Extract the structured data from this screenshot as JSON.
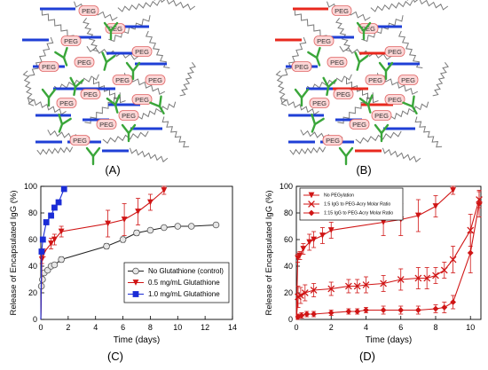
{
  "panels": {
    "A": {
      "caption": "(A)",
      "peg_label": "PEG"
    },
    "B": {
      "caption": "(B)",
      "peg_label": "PEG"
    },
    "C": {
      "caption": "(C)"
    },
    "D": {
      "caption": "(D)"
    }
  },
  "colors": {
    "peg_fill": "#fcd6d6",
    "peg_stroke": "#e06666",
    "crosslink_blue": "#1f3fd6",
    "crosslink_red": "#e8281e",
    "antibody_green": "#3aa63a",
    "chain_gray": "#7a7a7a",
    "gray_series": "#9a9a9a",
    "red_series": "#d01515",
    "blue_series": "#1a2cd6"
  },
  "icons": {
    "antibody": "y-shaped-antibody-icon",
    "polymer_chain": "wavy-chain-icon",
    "crosslinker": "crosslink-bar-icon"
  },
  "chart_data": [
    {
      "panel": "C",
      "type": "line",
      "xlabel": "Time (days)",
      "ylabel": "Release of Encapsulated IgG (%)",
      "xlim": [
        0,
        14
      ],
      "ylim": [
        0,
        100
      ],
      "xticks": [
        0,
        2,
        4,
        6,
        8,
        10,
        12,
        14
      ],
      "yticks": [
        0,
        20,
        40,
        60,
        80,
        100
      ],
      "grid": false,
      "legend_position": "bottom-right",
      "series": [
        {
          "name": "No Glutathione (control)",
          "color": "#9a9a9a",
          "marker": "circle",
          "x": [
            0,
            0.04,
            0.12,
            0.25,
            0.5,
            0.75,
            1,
            1.5,
            4.8,
            6,
            7,
            8,
            9,
            10,
            11,
            12.8
          ],
          "y": [
            0,
            25,
            30,
            35,
            37,
            40,
            41,
            45,
            55,
            60,
            65,
            67,
            69,
            70,
            70,
            71
          ],
          "err": [
            0,
            0,
            0,
            0,
            0,
            0,
            0,
            2,
            2,
            2,
            2,
            1,
            1,
            1,
            1,
            1
          ]
        },
        {
          "name": "0.5 mg/mL Glutathione",
          "color": "#d01515",
          "marker": "triangle-down",
          "x": [
            0,
            0.08,
            0.2,
            0.75,
            1,
            1.5,
            4.9,
            6.1,
            7.1,
            8,
            9
          ],
          "y": [
            0,
            45,
            50,
            57,
            60,
            66,
            72,
            75,
            81,
            88,
            97
          ],
          "err": [
            0,
            3,
            3,
            4,
            4,
            4,
            10,
            12,
            10,
            6,
            3
          ]
        },
        {
          "name": "1.0 mg/mL Glutathione",
          "color": "#1a2cd6",
          "marker": "square",
          "x": [
            0,
            0.06,
            0.15,
            0.4,
            0.75,
            1,
            1.3,
            1.7
          ],
          "y": [
            0,
            51,
            60,
            73,
            78,
            84,
            88,
            98
          ],
          "err": [
            0,
            0,
            0,
            0,
            0,
            0,
            0,
            0
          ]
        }
      ]
    },
    {
      "panel": "D",
      "type": "line",
      "xlabel": "Time (days)",
      "ylabel": "Release of Encapsulated IgG (%)",
      "xlim": [
        0,
        10.6
      ],
      "ylim": [
        0,
        100
      ],
      "xticks": [
        0,
        2,
        4,
        6,
        8,
        10
      ],
      "yticks": [
        0,
        20,
        40,
        60,
        80,
        100
      ],
      "grid": false,
      "legend_position": "top-left",
      "series": [
        {
          "name": "No PEGylation",
          "color": "#d01515",
          "marker": "triangle-down",
          "x": [
            0,
            0.08,
            0.2,
            0.4,
            0.75,
            1,
            1.5,
            2,
            5,
            6,
            7,
            8,
            9
          ],
          "y": [
            0,
            46,
            48,
            53,
            58,
            60,
            63,
            67,
            73,
            75,
            78,
            85,
            97
          ],
          "err": [
            0,
            3,
            3,
            4,
            6,
            6,
            6,
            6,
            10,
            12,
            12,
            8,
            3
          ]
        },
        {
          "name": "1:5 IgG to PEG-Acry Molar Ratio",
          "color": "#d01515",
          "marker": "x",
          "x": [
            0,
            0.1,
            0.25,
            0.5,
            1,
            2,
            3,
            3.5,
            4,
            5,
            6,
            7,
            7.5,
            8,
            8.5,
            9,
            10,
            10.5
          ],
          "y": [
            0,
            17,
            18,
            20,
            22,
            23,
            25,
            25,
            26,
            27,
            30,
            31,
            31,
            33,
            37,
            45,
            67,
            90
          ],
          "err": [
            0,
            8,
            6,
            6,
            5,
            5,
            5,
            5,
            6,
            6,
            8,
            8,
            8,
            6,
            6,
            10,
            12,
            6
          ]
        },
        {
          "name": "1:15 IgG to PEG-Acry Molar Ratio",
          "color": "#d01515",
          "marker": "diamond",
          "x": [
            0,
            0.1,
            0.3,
            0.6,
            1,
            2,
            3,
            3.5,
            4,
            5,
            6,
            7,
            8,
            8.5,
            9,
            10,
            10.5
          ],
          "y": [
            0,
            2,
            3,
            4,
            4,
            5,
            6,
            6,
            7,
            7,
            7,
            7,
            8,
            9,
            13,
            50,
            87
          ],
          "err": [
            0,
            2,
            2,
            2,
            2,
            2,
            2,
            2,
            2,
            3,
            3,
            3,
            3,
            4,
            5,
            15,
            10
          ]
        }
      ]
    }
  ]
}
